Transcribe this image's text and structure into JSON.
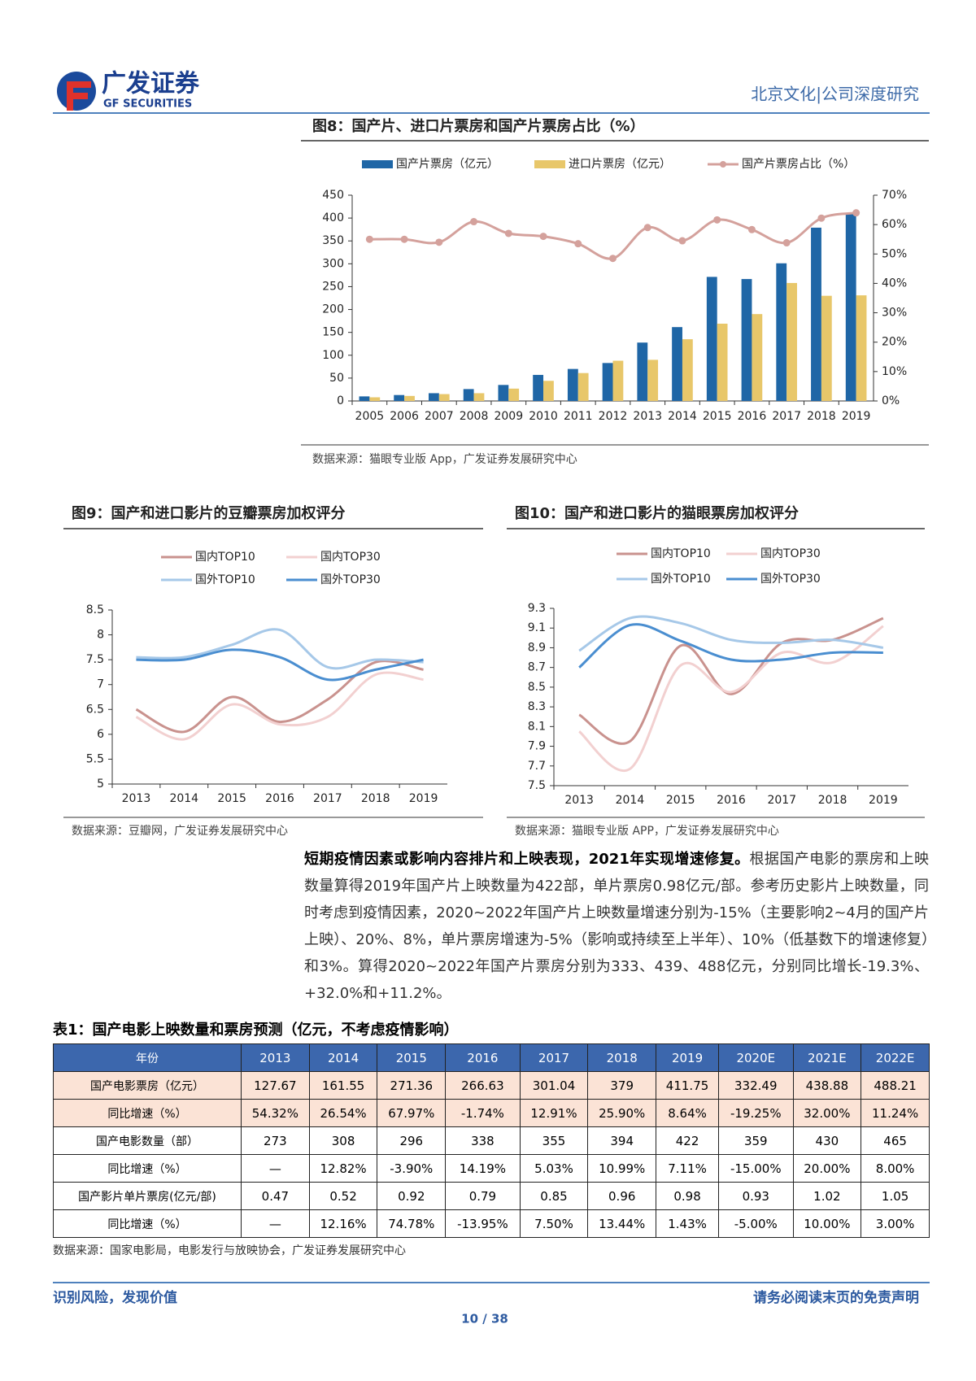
{
  "header": {
    "logo_cn": "广发证券",
    "logo_en": "GF SECURITIES",
    "right": "北京文化|公司深度研究"
  },
  "chart_data": [
    {
      "type": "combo",
      "title": "图8：国产片、进口片票房和国产片票房占比（%）",
      "source": "数据来源：猫眼专业版 App，广发证券发展研究中心",
      "legend": "top",
      "categories": [
        "2005",
        "2006",
        "2007",
        "2008",
        "2009",
        "2010",
        "2011",
        "2012",
        "2013",
        "2014",
        "2015",
        "2016",
        "2017",
        "2018",
        "2019"
      ],
      "series": [
        {
          "name": "国产片票房（亿元）",
          "type": "bar",
          "color": "#1f66a6",
          "values": [
            10,
            13,
            17,
            26,
            35,
            57,
            70,
            83,
            127.67,
            161.55,
            271.36,
            266.63,
            301.04,
            379,
            411.75
          ]
        },
        {
          "name": "进口片票房（亿元）",
          "type": "bar",
          "color": "#e8c76a",
          "values": [
            8,
            11,
            15,
            17,
            27,
            44,
            61,
            88,
            90,
            135,
            169,
            190,
            258,
            230,
            231
          ]
        },
        {
          "name": "国产片票房占比（%）",
          "type": "line",
          "axis": "y2",
          "color": "#d4a19c",
          "values": [
            55,
            55,
            54,
            61,
            57,
            56,
            53.5,
            48.5,
            59,
            54.5,
            61.6,
            58.3,
            53.8,
            62.2,
            64
          ]
        }
      ],
      "ylim": [
        0,
        450
      ],
      "yticks": [
        0,
        50,
        100,
        150,
        200,
        250,
        300,
        350,
        400,
        450
      ],
      "y2lim": [
        0,
        70
      ],
      "y2ticks": [
        {
          "value": 0,
          "label": "0%"
        },
        {
          "value": 10,
          "label": "10%"
        },
        {
          "value": 20,
          "label": "20%"
        },
        {
          "value": 30,
          "label": "30%"
        },
        {
          "value": 40,
          "label": "40%"
        },
        {
          "value": 50,
          "label": "50%"
        },
        {
          "value": 60,
          "label": "60%"
        },
        {
          "value": 70,
          "label": "70%"
        }
      ]
    },
    {
      "type": "line",
      "title": "图9：国产和进口影片的豆瓣票房加权评分",
      "source": "数据来源：豆瓣网，广发证券发展研究中心",
      "legend": "top",
      "categories": [
        "2013",
        "2014",
        "2015",
        "2016",
        "2017",
        "2018",
        "2019"
      ],
      "series": [
        {
          "name": "国内TOP10",
          "color": "#c9928e",
          "values": [
            6.5,
            6.05,
            6.75,
            6.25,
            6.7,
            7.45,
            7.3
          ]
        },
        {
          "name": "国内TOP30",
          "color": "#f2d0d0",
          "values": [
            6.35,
            5.9,
            6.6,
            6.2,
            6.35,
            7.2,
            7.1
          ]
        },
        {
          "name": "国外TOP10",
          "color": "#a6c8e8",
          "values": [
            7.55,
            7.55,
            7.8,
            8.1,
            7.35,
            7.5,
            7.45
          ]
        },
        {
          "name": "国外TOP30",
          "color": "#4a8ed0",
          "values": [
            7.5,
            7.5,
            7.7,
            7.55,
            7.1,
            7.3,
            7.5
          ]
        }
      ],
      "ylim": [
        5,
        8.5
      ],
      "yticks": [
        5,
        5.5,
        6,
        6.5,
        7,
        7.5,
        8,
        8.5
      ]
    },
    {
      "type": "line",
      "title": "图10：国产和进口影片的猫眼票房加权评分",
      "source": "数据来源：猫眼专业版 APP，广发证券发展研究中心",
      "legend": "top",
      "categories": [
        "2013",
        "2014",
        "2015",
        "2016",
        "2017",
        "2018",
        "2019"
      ],
      "series": [
        {
          "name": "国内TOP10",
          "color": "#c9928e",
          "values": [
            8.22,
            7.95,
            8.92,
            8.43,
            8.95,
            8.98,
            9.2
          ]
        },
        {
          "name": "国内TOP30",
          "color": "#f2d0d0",
          "values": [
            8.05,
            7.67,
            8.72,
            8.45,
            8.85,
            8.75,
            9.12
          ]
        },
        {
          "name": "国外TOP10",
          "color": "#a6c8e8",
          "values": [
            8.87,
            9.2,
            9.15,
            8.98,
            8.95,
            8.98,
            8.9
          ]
        },
        {
          "name": "国外TOP30",
          "color": "#4a8ed0",
          "values": [
            8.7,
            9.13,
            8.97,
            8.78,
            8.78,
            8.85,
            8.85
          ]
        }
      ],
      "ylim": [
        7.5,
        9.3
      ],
      "yticks": [
        7.5,
        7.7,
        7.9,
        8.1,
        8.3,
        8.5,
        8.7,
        8.9,
        9.1,
        9.3
      ]
    }
  ],
  "paragraph": {
    "lead": "短期疫情因素或影响内容排片和上映表现，2021年实现增速修复。",
    "body": "根据国产电影的票房和上映数量算得2019年国产片上映数量为422部，单片票房0.98亿元/部。参考历史影片上映数量，同时考虑到疫情因素，2020~2022年国产片上映数量增速分别为-15%（主要影响2~4月的国产片上映）、20%、8%，单片票房增速为-5%（影响或持续至上半年）、10%（低基数下的增速修复）和3%。算得2020~2022年国产片票房分别为333、439、488亿元，分别同比增长-19.3%、+32.0%和+11.2%。"
  },
  "table": {
    "title": "表1：国产电影上映数量和票房预测（亿元，不考虑疫情影响）",
    "header": [
      "年份",
      "2013",
      "2014",
      "2015",
      "2016",
      "2017",
      "2018",
      "2019",
      "2020E",
      "2021E",
      "2022E"
    ],
    "rows": [
      [
        "国产电影票房（亿元）",
        "127.67",
        "161.55",
        "271.36",
        "266.63",
        "301.04",
        "379",
        "411.75",
        "332.49",
        "438.88",
        "488.21"
      ],
      [
        "同比增速（%）",
        "54.32%",
        "26.54%",
        "67.97%",
        "-1.74%",
        "12.91%",
        "25.90%",
        "8.64%",
        "-19.25%",
        "32.00%",
        "11.24%"
      ],
      [
        "国产电影数量（部）",
        "273",
        "308",
        "296",
        "338",
        "355",
        "394",
        "422",
        "359",
        "430",
        "465"
      ],
      [
        "同比增速（%）",
        "—",
        "12.82%",
        "-3.90%",
        "14.19%",
        "5.03%",
        "10.99%",
        "7.11%",
        "-15.00%",
        "20.00%",
        "8.00%"
      ],
      [
        "国产影片单片票房(亿元/部)",
        "0.47",
        "0.52",
        "0.92",
        "0.79",
        "0.85",
        "0.96",
        "0.98",
        "0.93",
        "1.02",
        "1.05"
      ],
      [
        "同比增速（%）",
        "—",
        "12.16%",
        "74.78%",
        "-13.95%",
        "7.50%",
        "13.44%",
        "1.43%",
        "-5.00%",
        "10.00%",
        "3.00%"
      ]
    ],
    "source": "数据来源：国家电影局，电影发行与放映协会，广发证券发展研究中心"
  },
  "footer": {
    "left": "识别风险，发现价值",
    "right": "请务必阅读末页的免责声明",
    "page": "10 / 38"
  }
}
